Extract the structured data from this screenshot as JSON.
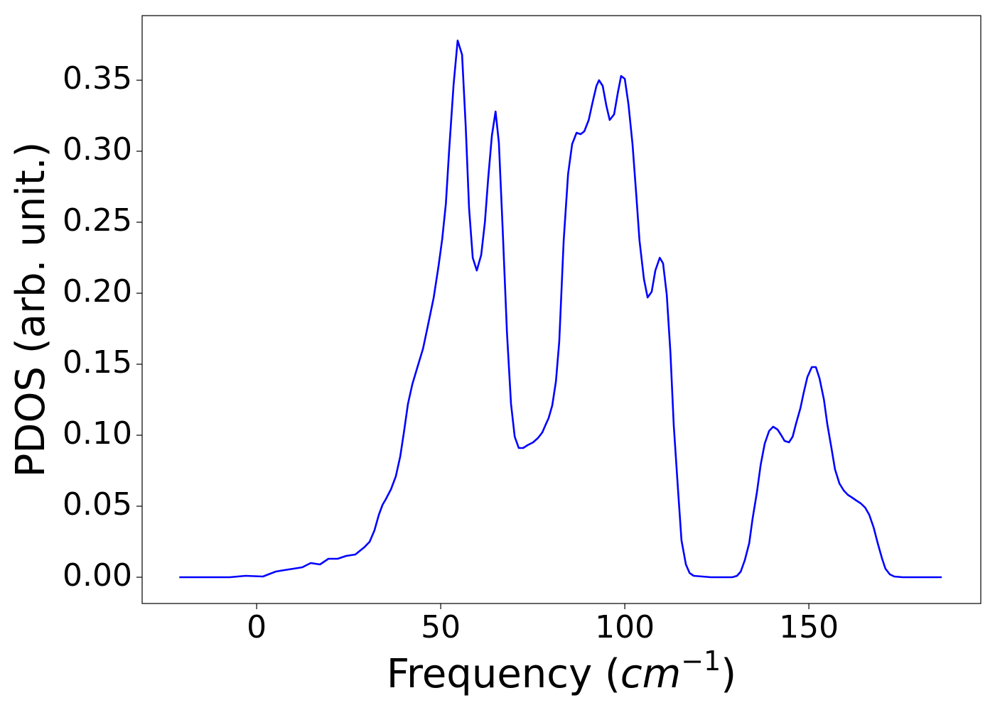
{
  "chart_data": {
    "type": "line",
    "xlabel": [
      "Frequency (",
      "cm",
      "−1",
      ")"
    ],
    "ylabel": "PDOS (arb. unit.)",
    "color": "#0000ff",
    "x": [
      -21,
      -7.3,
      -3,
      1.7,
      5.2,
      7.5,
      10,
      12.4,
      14.7,
      17.2,
      19.5,
      22,
      24.3,
      26.8,
      29.2,
      30.7,
      32,
      33.2,
      34.2,
      35.1,
      36.5,
      37.8,
      39,
      40,
      41.1,
      42.3,
      43.8,
      45.2,
      46.5,
      48.1,
      49.4,
      50.4,
      51.4,
      52.3,
      53.5,
      54.6,
      55.8,
      56.8,
      57.7,
      58.7,
      59.8,
      61,
      62,
      62.9,
      63.9,
      64.9,
      65.8,
      66.8,
      68,
      69.1,
      70.1,
      71.2,
      72.4,
      73.6,
      75.1,
      76.4,
      77.6,
      78.6,
      79.3,
      80.3,
      81.3,
      82.2,
      83.4,
      84.6,
      85.7,
      86.9,
      88,
      89,
      90.2,
      91.3,
      92.3,
      93,
      94,
      95,
      95.9,
      97.1,
      98.1,
      99,
      100,
      101,
      102.1,
      103.1,
      104,
      105.2,
      106.2,
      107.3,
      108.3,
      109.5,
      110.4,
      111.4,
      112.4,
      113.3,
      114.5,
      115.4,
      116.6,
      117.6,
      118.7,
      123.4,
      129.2,
      130.5,
      131.5,
      132.6,
      133.8,
      134.7,
      135.9,
      136.9,
      138,
      139.2,
      140.3,
      141.5,
      142.5,
      143.4,
      144.6,
      145.6,
      146.5,
      147.7,
      148.6,
      149.6,
      150.8,
      151.9,
      152.9,
      154.1,
      155,
      156.2,
      157.1,
      158.3,
      159.5,
      160.6,
      161.8,
      162.9,
      164.1,
      165.3,
      166.4,
      167.6,
      168.7,
      169.9,
      170.8,
      172,
      173.2,
      175.5,
      186.1
    ],
    "values": [
      0,
      0,
      0.001,
      0.0005,
      0.004,
      0.005,
      0.006,
      0.007,
      0.01,
      0.009,
      0.013,
      0.013,
      0.015,
      0.016,
      0.021,
      0.025,
      0.033,
      0.044,
      0.051,
      0.055,
      0.062,
      0.071,
      0.085,
      0.102,
      0.122,
      0.136,
      0.149,
      0.161,
      0.177,
      0.197,
      0.219,
      0.238,
      0.263,
      0.301,
      0.347,
      0.378,
      0.368,
      0.317,
      0.26,
      0.225,
      0.216,
      0.227,
      0.25,
      0.281,
      0.311,
      0.328,
      0.306,
      0.247,
      0.172,
      0.122,
      0.099,
      0.091,
      0.091,
      0.093,
      0.095,
      0.098,
      0.102,
      0.108,
      0.112,
      0.121,
      0.138,
      0.166,
      0.237,
      0.284,
      0.305,
      0.313,
      0.312,
      0.314,
      0.322,
      0.335,
      0.346,
      0.35,
      0.346,
      0.332,
      0.322,
      0.326,
      0.341,
      0.353,
      0.351,
      0.333,
      0.305,
      0.27,
      0.237,
      0.21,
      0.197,
      0.201,
      0.216,
      0.225,
      0.221,
      0.199,
      0.158,
      0.107,
      0.06,
      0.026,
      0.009,
      0.003,
      0.001,
      0,
      0,
      0.001,
      0.004,
      0.012,
      0.024,
      0.041,
      0.06,
      0.079,
      0.094,
      0.103,
      0.106,
      0.104,
      0.1,
      0.096,
      0.095,
      0.099,
      0.108,
      0.119,
      0.13,
      0.141,
      0.148,
      0.148,
      0.14,
      0.125,
      0.108,
      0.09,
      0.076,
      0.066,
      0.061,
      0.058,
      0.056,
      0.054,
      0.052,
      0.049,
      0.044,
      0.035,
      0.024,
      0.013,
      0.006,
      0.002,
      0.0005,
      0,
      0
    ],
    "xlim": [
      -31.1,
      196.7
    ],
    "xticks": [
      0,
      50,
      100,
      150
    ],
    "ylim": [
      -0.0185,
      0.3955
    ],
    "yticks": [
      {
        "value": 0,
        "label": "0.00"
      },
      0.05,
      {
        "value": 0.1,
        "label": "0.10"
      },
      0.15,
      {
        "value": 0.2,
        "label": "0.20"
      },
      0.25,
      {
        "value": 0.3,
        "label": "0.30"
      },
      0.35
    ],
    "grid": false
  }
}
